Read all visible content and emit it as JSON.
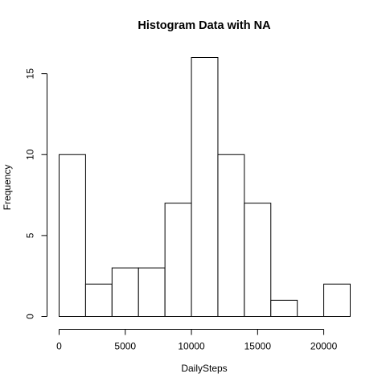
{
  "chart_data": {
    "type": "bar",
    "title": "Histogram Data with NA",
    "xlabel": "DailySteps",
    "ylabel": "Frequency",
    "bin_edges": [
      0,
      2000,
      4000,
      6000,
      8000,
      10000,
      12000,
      14000,
      16000,
      18000,
      20000,
      22000
    ],
    "values": [
      10,
      2,
      3,
      3,
      7,
      16,
      10,
      7,
      1,
      0,
      2
    ],
    "x_ticks": [
      0,
      5000,
      10000,
      15000,
      20000
    ],
    "x_tick_labels": [
      "0",
      "5000",
      "10000",
      "15000",
      "20000"
    ],
    "y_ticks": [
      0,
      5,
      10,
      15
    ],
    "y_tick_labels": [
      "0",
      "5",
      "10",
      "15"
    ],
    "xlim": [
      0,
      22000
    ],
    "ylim": [
      0,
      16
    ],
    "grid": false,
    "bar_fill": "#ffffff",
    "bar_stroke": "#000000"
  }
}
